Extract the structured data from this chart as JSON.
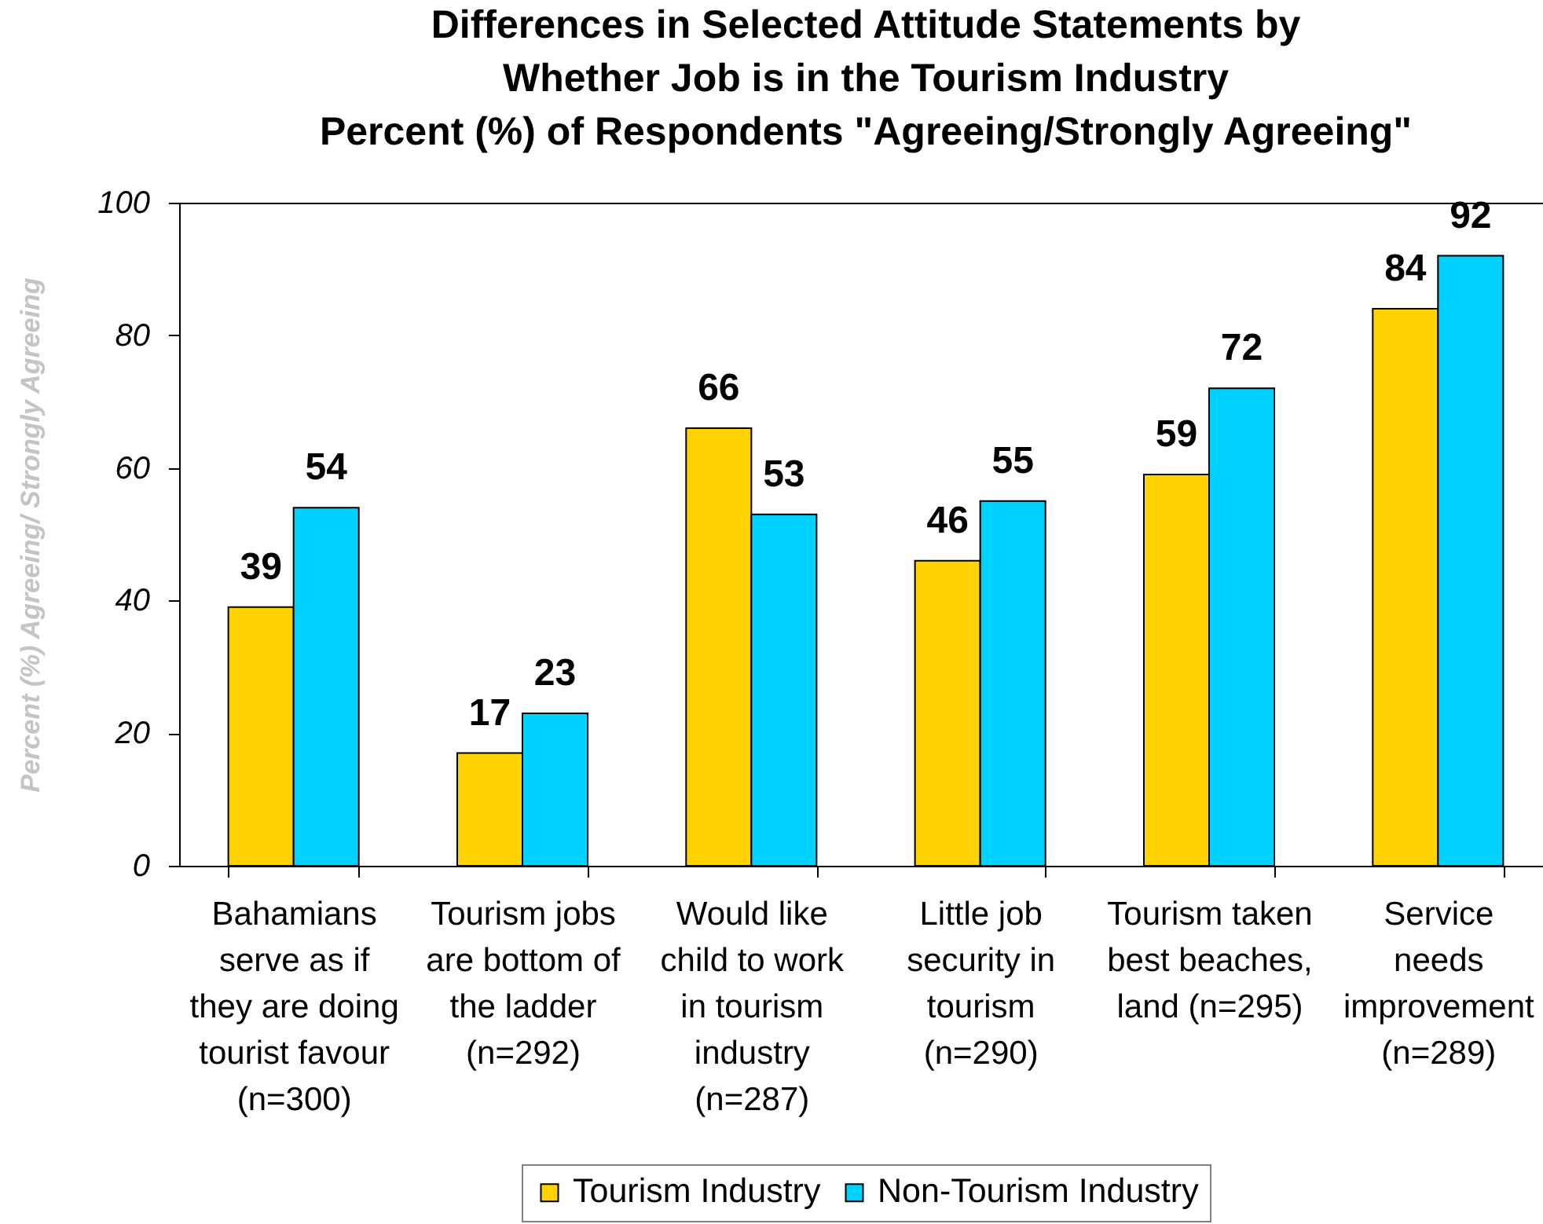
{
  "chart_data": {
    "type": "bar",
    "title": "Differences in Selected Attitude Statements by Whether Job is in the Tourism Industry",
    "subtitle": "Percent (%) of Respondents \"Agreeing/Strongly Agreeing\"",
    "ylabel": "Percent (%) Agreeing/ Strongly Agreeing",
    "categories": [
      "Bahamians\nserve as if\nthey are doing\ntourist favour\n(n=300)",
      "Tourism jobs\nare bottom of\nthe ladder\n(n=292)",
      "Would like\nchild to work\nin tourism\nindustry\n(n=287)",
      "Little job\nsecurity in\ntourism\n(n=290)",
      "Tourism taken\nbest beaches,\nland (n=295)",
      "Service\nneeds\nimprovement\n(n=289)"
    ],
    "series": [
      {
        "name": "Tourism Industry",
        "color": "#ffd200",
        "values": [
          39,
          17,
          66,
          46,
          59,
          84
        ]
      },
      {
        "name": "Non-Tourism Industry",
        "color": "#00d2ff",
        "values": [
          54,
          23,
          53,
          55,
          72,
          92
        ]
      }
    ],
    "ylim": [
      0,
      100
    ],
    "yticks": [
      0,
      20,
      40,
      60,
      80,
      100
    ],
    "data_labels": true,
    "legend": "bottom"
  }
}
